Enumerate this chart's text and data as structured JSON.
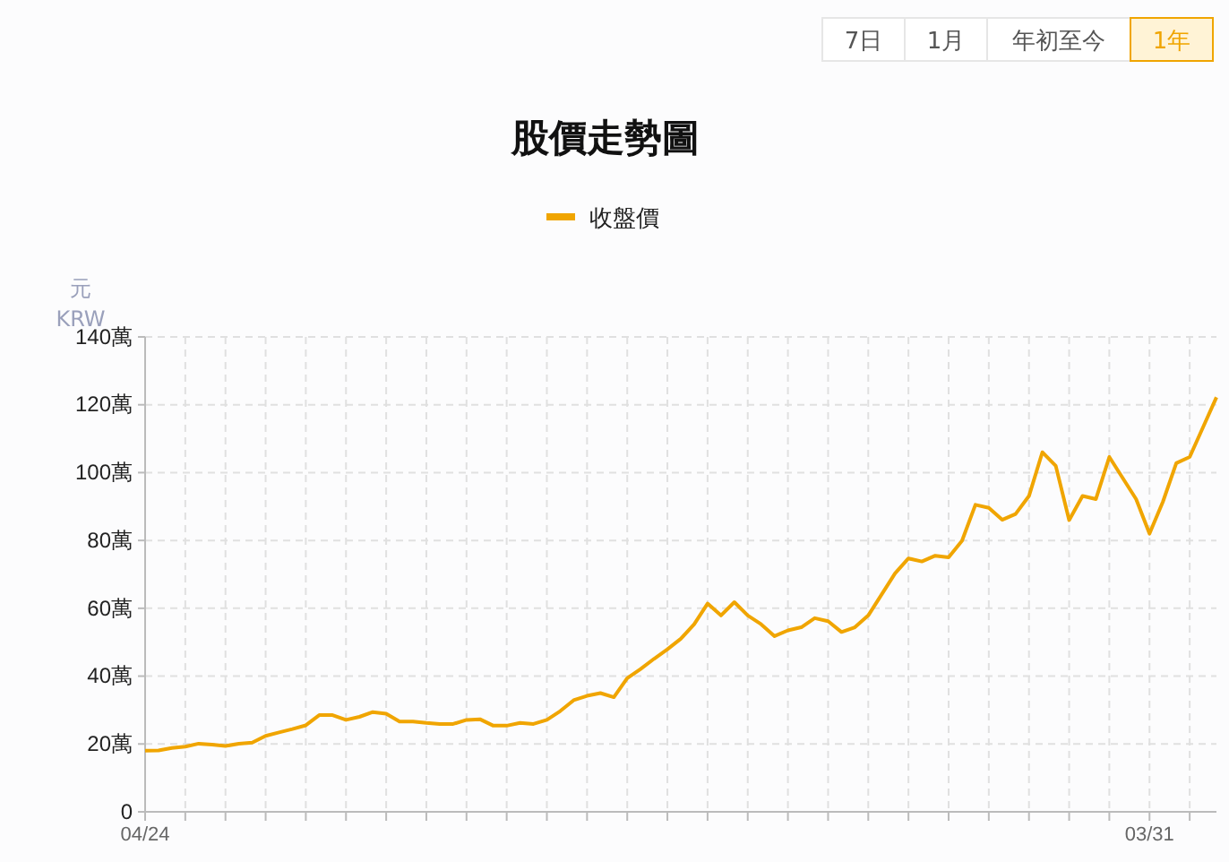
{
  "chart_data": {
    "type": "line",
    "title": "股價走勢圖",
    "ylabel": "元\nKRW",
    "annotations": [
      "7日",
      "1月",
      "年初至今",
      "1年"
    ],
    "categories": [
      "04/24",
      null,
      null,
      null,
      null,
      null,
      null,
      null,
      null,
      null,
      null,
      null,
      null,
      null,
      null,
      null,
      null,
      null,
      null,
      null,
      null,
      null,
      null,
      null,
      null,
      null,
      null,
      null,
      null,
      null,
      null,
      null,
      null,
      null,
      null,
      null,
      null,
      null,
      null,
      null,
      null,
      null,
      null,
      null,
      null,
      null,
      null,
      null,
      null,
      null,
      null,
      null,
      null,
      null,
      null,
      null,
      null,
      null,
      null,
      null,
      null,
      null,
      null,
      null,
      null,
      null,
      null,
      null,
      null,
      null,
      null,
      null,
      null,
      null,
      null,
      "03/31",
      null,
      null,
      null,
      null,
      null
    ],
    "series": [
      {
        "name": "收盤價",
        "color": "#f0a500",
        "values": [
          18.0,
          18.1,
          18.8,
          19.2,
          20.1,
          19.8,
          19.4,
          20.1,
          20.4,
          22.4,
          23.4,
          24.4,
          25.5,
          28.5,
          28.5,
          27.1,
          28.0,
          29.4,
          28.9,
          26.6,
          26.6,
          26.2,
          25.9,
          25.9,
          27.1,
          27.3,
          25.4,
          25.4,
          26.2,
          25.9,
          27.1,
          29.7,
          32.9,
          34.2,
          35.0,
          33.8,
          39.4,
          42.1,
          45.1,
          47.9,
          51.0,
          55.3,
          61.4,
          57.9,
          61.8,
          57.9,
          55.3,
          51.8,
          53.5,
          54.4,
          57.1,
          56.2,
          53.0,
          54.4,
          57.9,
          64.1,
          70.3,
          74.7,
          73.8,
          75.5,
          75.0,
          79.9,
          90.5,
          89.6,
          86.1,
          87.8,
          93.1,
          106,
          102.0,
          86,
          93.1,
          92.2,
          104.6,
          98.4,
          92.2,
          82,
          91.4,
          102.8,
          104.6,
          113.4,
          122.2
        ]
      }
    ],
    "ylim": [
      0,
      140
    ],
    "yticks": [
      0,
      {
        "value": 20,
        "label": "20萬"
      },
      {
        "value": 40,
        "label": "40萬"
      },
      {
        "value": 60,
        "label": "60萬"
      },
      {
        "value": 80,
        "label": "80萬"
      },
      {
        "value": 100,
        "label": "100萬"
      },
      {
        "value": 120,
        "label": "120萬"
      },
      {
        "value": 140,
        "label": "140萬"
      }
    ],
    "grid": true,
    "legend": "top",
    "line_style": "solid",
    "marker": "none"
  }
}
